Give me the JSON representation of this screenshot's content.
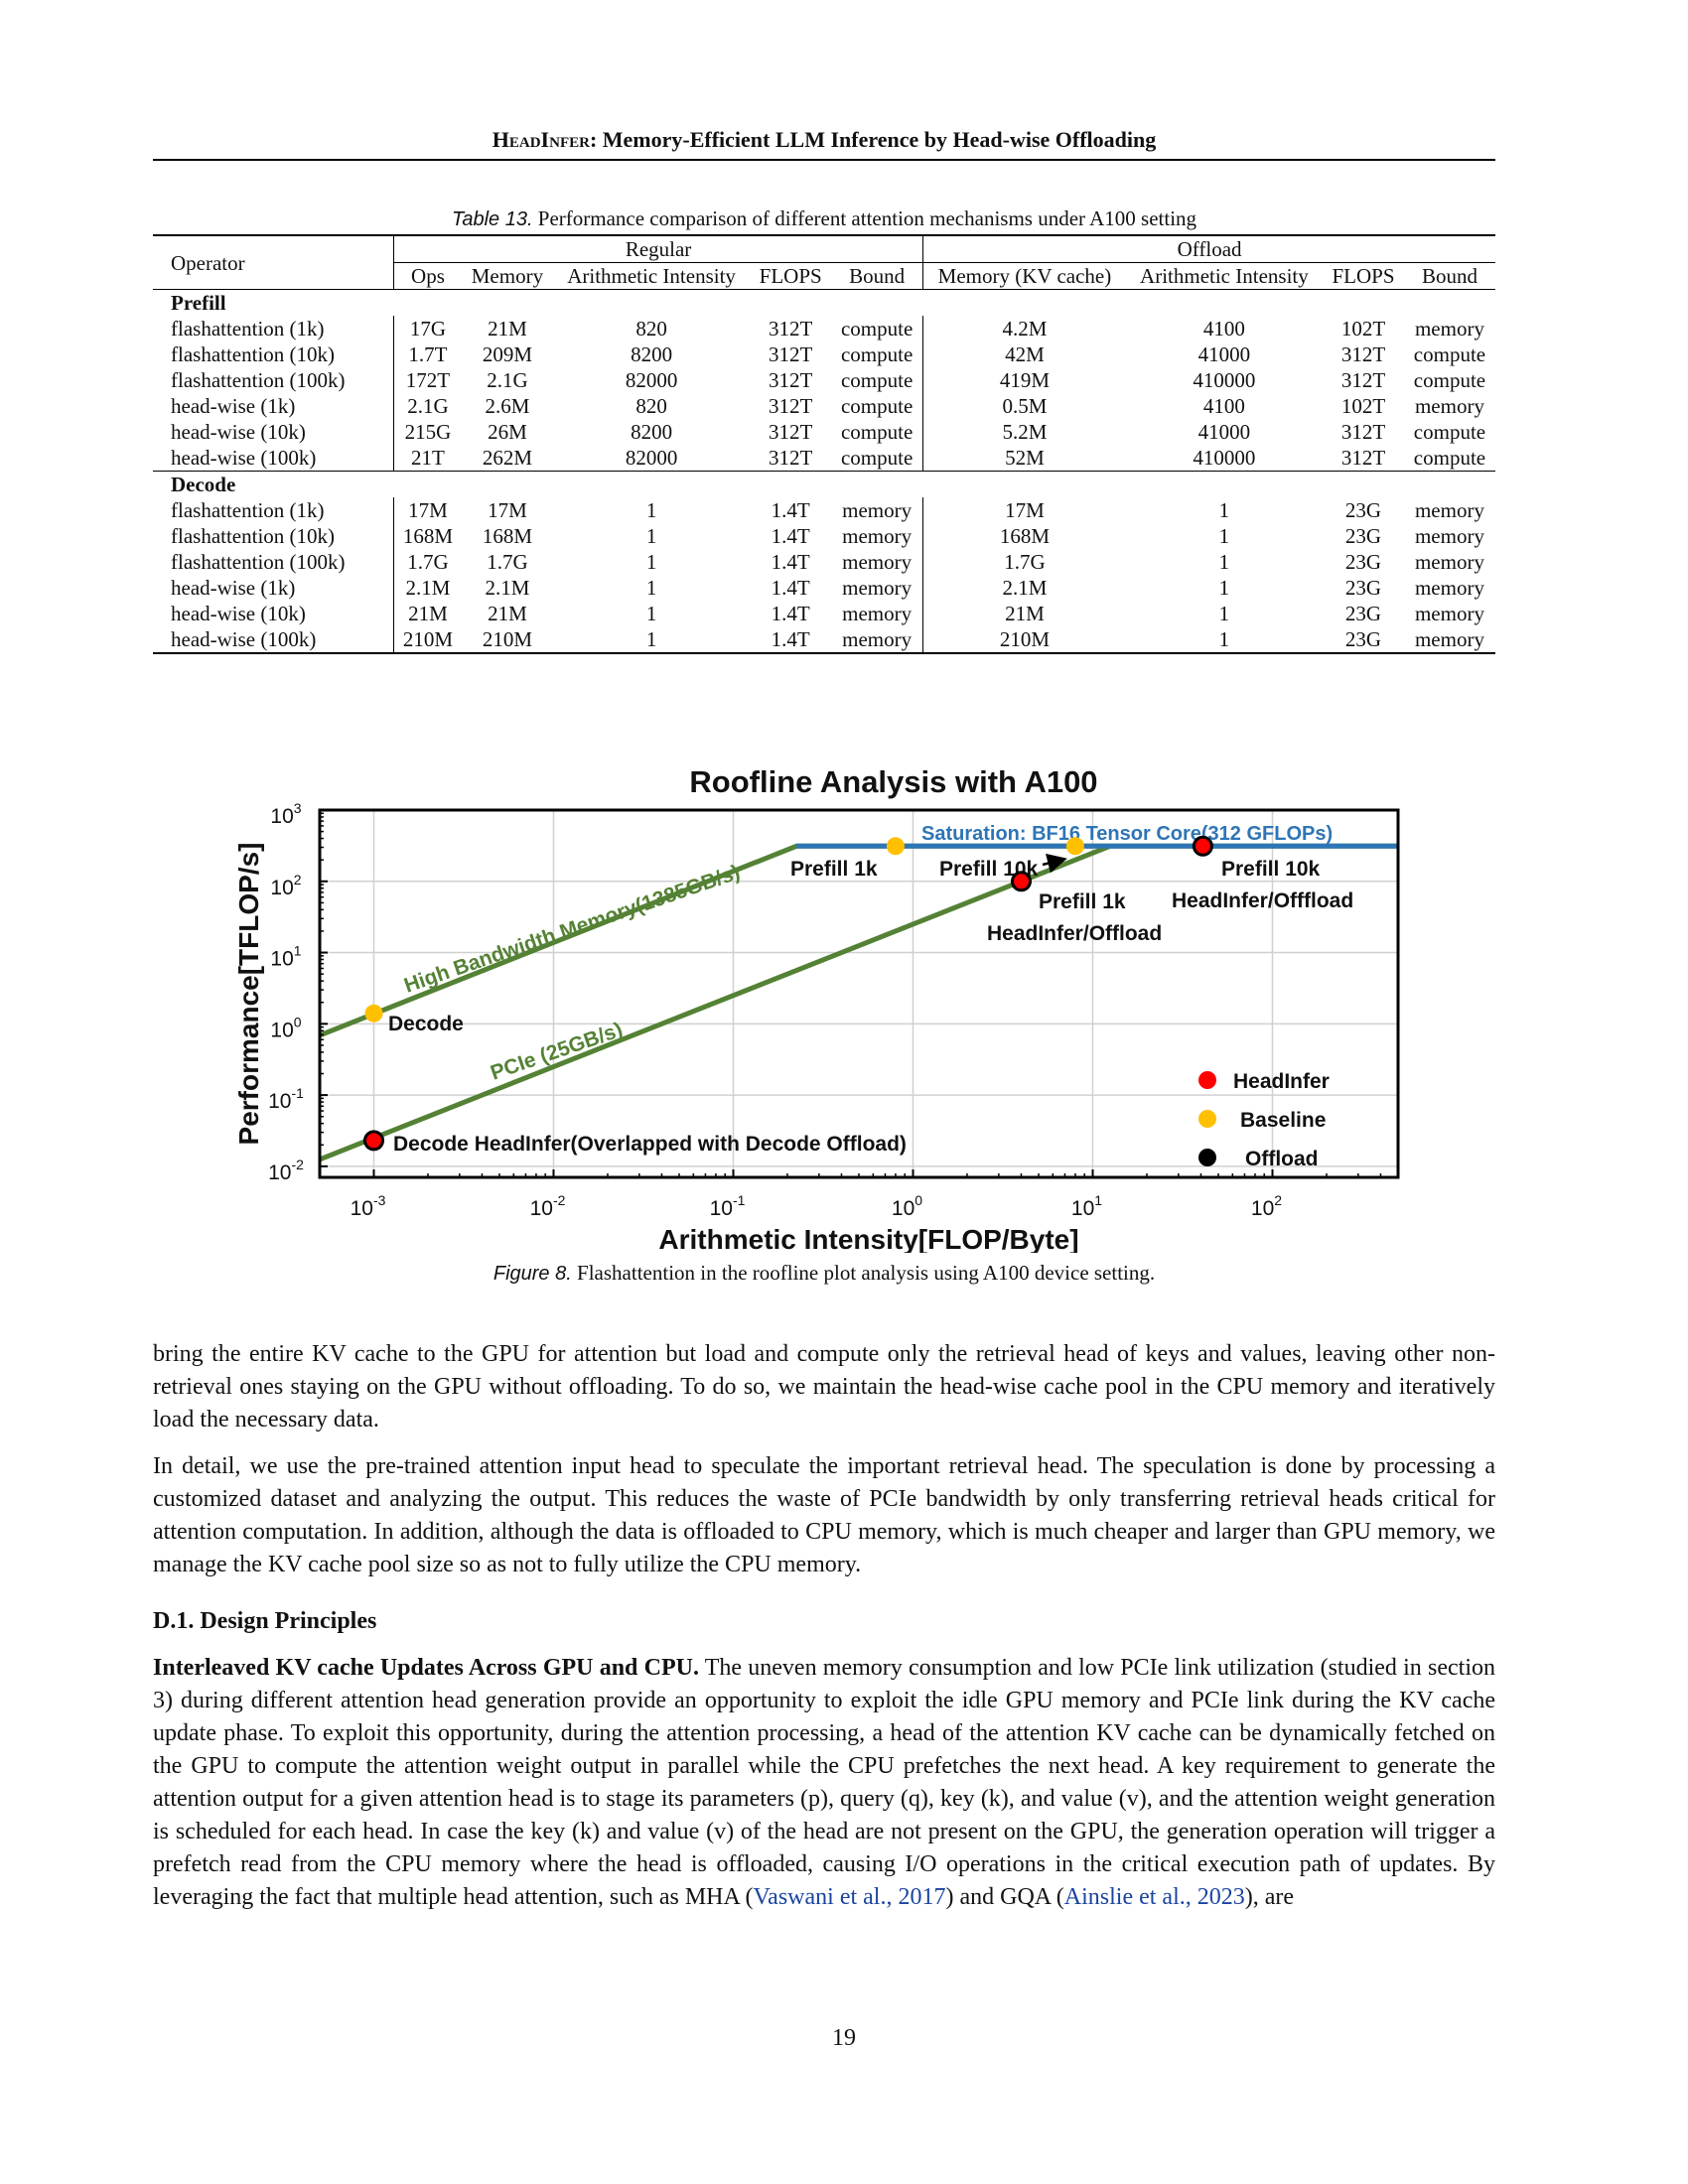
{
  "header": {
    "title_sc": "HeadInfer",
    "title_rest": ": Memory-Efficient LLM Inference by Head-wise Offloading"
  },
  "table": {
    "caption_label": "Table 13.",
    "caption_text": "Performance comparison of different attention mechanisms under A100 setting",
    "operator_header": "Operator",
    "group_regular": "Regular",
    "group_offload": "Offload",
    "regular_cols": [
      "Ops",
      "Memory",
      "Arithmetic Intensity",
      "FLOPS",
      "Bound"
    ],
    "offload_cols": [
      "Memory (KV cache)",
      "Arithmetic Intensity",
      "FLOPS",
      "Bound"
    ],
    "sections": [
      {
        "name": "Prefill",
        "rows": [
          [
            "flashattention (1k)",
            "17G",
            "21M",
            "820",
            "312T",
            "compute",
            "4.2M",
            "4100",
            "102T",
            "memory"
          ],
          [
            "flashattention (10k)",
            "1.7T",
            "209M",
            "8200",
            "312T",
            "compute",
            "42M",
            "41000",
            "312T",
            "compute"
          ],
          [
            "flashattention (100k)",
            "172T",
            "2.1G",
            "82000",
            "312T",
            "compute",
            "419M",
            "410000",
            "312T",
            "compute"
          ],
          [
            "head-wise (1k)",
            "2.1G",
            "2.6M",
            "820",
            "312T",
            "compute",
            "0.5M",
            "4100",
            "102T",
            "memory"
          ],
          [
            "head-wise (10k)",
            "215G",
            "26M",
            "8200",
            "312T",
            "compute",
            "5.2M",
            "41000",
            "312T",
            "compute"
          ],
          [
            "head-wise (100k)",
            "21T",
            "262M",
            "82000",
            "312T",
            "compute",
            "52M",
            "410000",
            "312T",
            "compute"
          ]
        ]
      },
      {
        "name": "Decode",
        "rows": [
          [
            "flashattention (1k)",
            "17M",
            "17M",
            "1",
            "1.4T",
            "memory",
            "17M",
            "1",
            "23G",
            "memory"
          ],
          [
            "flashattention (10k)",
            "168M",
            "168M",
            "1",
            "1.4T",
            "memory",
            "168M",
            "1",
            "23G",
            "memory"
          ],
          [
            "flashattention (100k)",
            "1.7G",
            "1.7G",
            "1",
            "1.4T",
            "memory",
            "1.7G",
            "1",
            "23G",
            "memory"
          ],
          [
            "head-wise (1k)",
            "2.1M",
            "2.1M",
            "1",
            "1.4T",
            "memory",
            "2.1M",
            "1",
            "23G",
            "memory"
          ],
          [
            "head-wise (10k)",
            "21M",
            "21M",
            "1",
            "1.4T",
            "memory",
            "21M",
            "1",
            "23G",
            "memory"
          ],
          [
            "head-wise (100k)",
            "210M",
            "210M",
            "1",
            "1.4T",
            "memory",
            "210M",
            "1",
            "23G",
            "memory"
          ]
        ]
      }
    ]
  },
  "chart_data": {
    "type": "scatter",
    "title": "Roofline Analysis with A100",
    "xlabel": "Arithmetic Intensity[FLOP/Byte]",
    "ylabel": "Performance[TFLOP/s]",
    "x_scale": "log",
    "y_scale": "log",
    "xlim": [
      0.0005,
      500
    ],
    "ylim": [
      0.007,
      1000
    ],
    "x_ticks": [
      0.001,
      0.01,
      0.1,
      1,
      10,
      100
    ],
    "x_tick_labels": [
      [
        "10",
        "-3"
      ],
      [
        "10",
        "-2"
      ],
      [
        "10",
        "-1"
      ],
      [
        "10",
        "0"
      ],
      [
        "10",
        "1"
      ],
      [
        "10",
        "2"
      ]
    ],
    "y_ticks": [
      0.01,
      0.1,
      1,
      10,
      100,
      1000
    ],
    "y_tick_labels": [
      [
        "10",
        "-2"
      ],
      [
        "10",
        "-1"
      ],
      [
        "10",
        "0"
      ],
      [
        "10",
        "1"
      ],
      [
        "10",
        "2"
      ],
      [
        "10",
        "3"
      ]
    ],
    "grid": true,
    "legend_position": "bottom-right",
    "rooflines": [
      {
        "label": "High Bandwidth Memory(1385GB/s)",
        "color": "#548235",
        "points": [
          [
            0.0005,
            0.69
          ],
          [
            0.225,
            312
          ],
          [
            500,
            312
          ]
        ]
      },
      {
        "label": "PCIe (25GB/s)",
        "color": "#548235",
        "points": [
          [
            0.0005,
            0.0125
          ],
          [
            12.5,
            312
          ]
        ]
      },
      {
        "label": "Saturation: BF16 Tensor Core(312 GFLOPs)",
        "color": "#2e75b6",
        "points": [
          [
            0.225,
            312
          ],
          [
            500,
            312
          ]
        ]
      }
    ],
    "points": [
      {
        "label": "Decode",
        "x": 0.001,
        "y": 1.4,
        "series": "Baseline"
      },
      {
        "label": "Prefill 1k",
        "x": 0.8,
        "y": 312,
        "series": "Baseline"
      },
      {
        "label": "Prefill 10k",
        "x": 8,
        "y": 312,
        "series": "Baseline"
      },
      {
        "label": "Decode HeadInfer(Overlapped with Decode Offload)",
        "x": 0.001,
        "y": 0.023,
        "series": "HeadInfer/Offload"
      },
      {
        "label": "Prefill 1k HeadInfer/Offload",
        "x": 4,
        "y": 100,
        "series": "HeadInfer/Offload"
      },
      {
        "label": "Prefill 10k HeadInfer/Offfload",
        "x": 41,
        "y": 312,
        "series": "HeadInfer/Offload"
      }
    ],
    "annotations": {
      "decode": "Decode",
      "decode_headinfer": "Decode HeadInfer(Overlapped with Decode Offload)",
      "prefill1k": "Prefill 1k",
      "prefill10k": "Prefill 10k",
      "prefill1k_ho_1": "Prefill 1k",
      "prefill1k_ho_2": "HeadInfer/Offload",
      "prefill10k_ho_1": "Prefill 10k",
      "prefill10k_ho_2": "HeadInfer/Offfload"
    },
    "legend": [
      {
        "label": "HeadInfer",
        "color": "#ff0000"
      },
      {
        "label": "Baseline",
        "color": "#ffc000"
      },
      {
        "label": "Offload",
        "color": "#000000"
      }
    ]
  },
  "figure": {
    "caption_label": "Figure 8.",
    "caption_text": "Flashattention in the roofline plot analysis using A100 device setting."
  },
  "body": {
    "p1": "bring the entire KV cache to the GPU for attention but load and compute only the retrieval head of keys and values, leaving other non-retrieval ones staying on the GPU without offloading. To do so, we maintain the head-wise cache pool in the CPU memory and iteratively load the necessary data.",
    "p2": "In detail, we use the pre-trained attention input head to speculate the important retrieval head. The speculation is done by processing a customized dataset and analyzing the output. This reduces the waste of PCIe bandwidth by only transferring retrieval heads critical for attention computation. In addition, although the data is offloaded to CPU memory, which is much cheaper and larger than GPU memory, we manage the KV cache pool size so as not to fully utilize the CPU memory.",
    "section_heading": "D.1. Design Principles",
    "p3_runin": "Interleaved KV cache Updates Across GPU and CPU.",
    "p3_text": " The uneven memory consumption and low PCIe link utilization (studied in section 3) during different attention head generation provide an opportunity to exploit the idle GPU memory and PCIe link during the KV cache update phase. To exploit this opportunity, during the attention processing, a head of the attention KV cache can be dynamically fetched on the GPU to compute the attention weight output in parallel while the CPU prefetches the next head. A key requirement to generate the attention output for a given attention head is to stage its parameters (p), query (q), key (k), and value (v), and the attention weight generation is scheduled for each head. In case the key (k) and value (v) of the head are not present on the GPU, the generation operation will trigger a prefetch read from the CPU memory where the head is offloaded, causing I/O operations in the critical execution path of updates. By leveraging the fact that multiple head attention, such as MHA (",
    "cite1": "Vaswani et al., 2017",
    "p3_mid": ") and GQA (",
    "cite2": "Ainslie et al., 2023",
    "p3_end": "), are"
  },
  "page_number": "19"
}
